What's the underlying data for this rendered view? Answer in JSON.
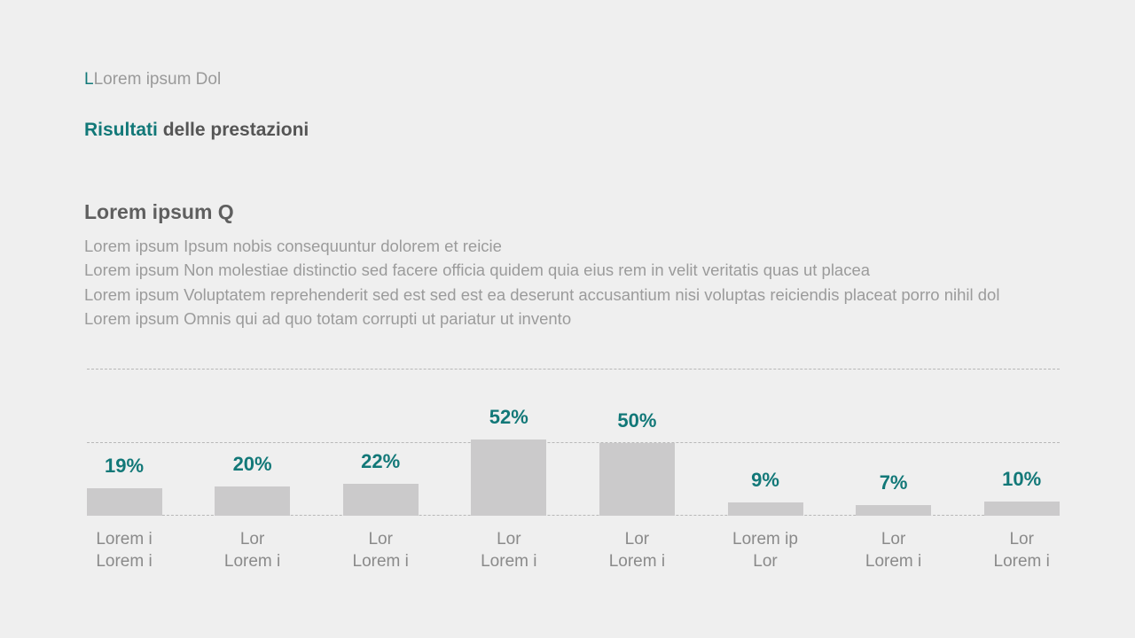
{
  "header": {
    "kicker_mark": "L",
    "kicker": "Lorem ipsum Dol",
    "title_highlight": "Risultati",
    "title_rest": "delle prestazioni"
  },
  "section": {
    "heading": "Lorem ipsum Q",
    "lines": [
      "Lorem ipsum Ipsum nobis consequuntur dolorem et reicie",
      "Lorem ipsum Non molestiae distinctio sed facere officia quidem quia eius rem in velit veritatis quas ut placea",
      "Lorem ipsum Voluptatem reprehenderit sed est sed est ea deserunt accusantium nisi voluptas reiciendis placeat porro nihil dol",
      "Lorem ipsum Omnis qui ad quo totam corrupti ut pariatur ut invento"
    ]
  },
  "chart_data": {
    "type": "bar",
    "categories": [
      "Lorem i\nLorem i",
      "Lor\nLorem i",
      "Lor\nLorem i",
      "Lor\nLorem i",
      "Lor\nLorem i",
      "Lorem ip\nLor",
      "Lor\nLorem i",
      "Lor\nLorem i"
    ],
    "values": [
      19,
      20,
      22,
      52,
      50,
      9,
      7,
      10
    ],
    "value_labels": [
      "19%",
      "20%",
      "22%",
      "52%",
      "50%",
      "9%",
      "7%",
      "10%"
    ],
    "color": "#cbcacb",
    "label_color": "#127878",
    "ylim": [
      0,
      100
    ],
    "yticks": [
      0,
      50,
      100
    ],
    "grid": true
  }
}
